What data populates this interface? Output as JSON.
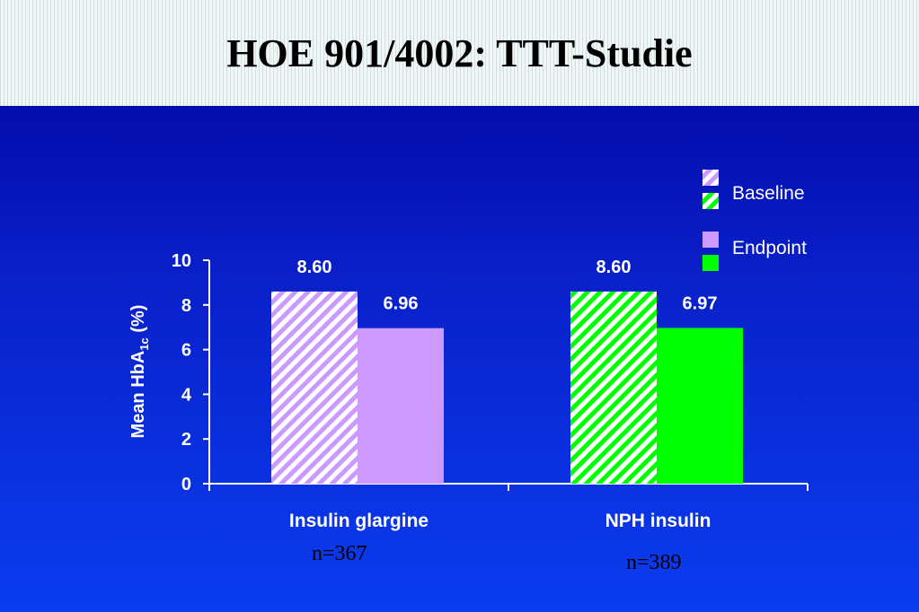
{
  "slide": {
    "title": "HOE 901/4002: TTT-Studie"
  },
  "chart_data": {
    "type": "bar",
    "categories": [
      "Insulin glargine",
      "NPH insulin"
    ],
    "series": [
      {
        "name": "Baseline",
        "values": [
          8.6,
          8.6
        ],
        "labels": [
          "8.60",
          "8.60"
        ]
      },
      {
        "name": "Endpoint",
        "values": [
          6.96,
          6.97
        ],
        "labels": [
          "6.96",
          "6.97"
        ]
      }
    ],
    "ylabel": "Mean HbA1c (%)",
    "ylabel_parts": {
      "main": "Mean HbA",
      "sub": "1c",
      "unit": " (%)"
    },
    "ylim": [
      0,
      10
    ],
    "yticks": [
      "0",
      "2",
      "4",
      "6",
      "8",
      "10"
    ],
    "sample_sizes": [
      "n=367",
      "n=389"
    ],
    "legend": {
      "placement": "top-right",
      "entries": [
        "Baseline",
        "Endpoint"
      ]
    },
    "colors": {
      "glargine": "#cc99ff",
      "nph": "#00ff00"
    },
    "grid": false
  }
}
